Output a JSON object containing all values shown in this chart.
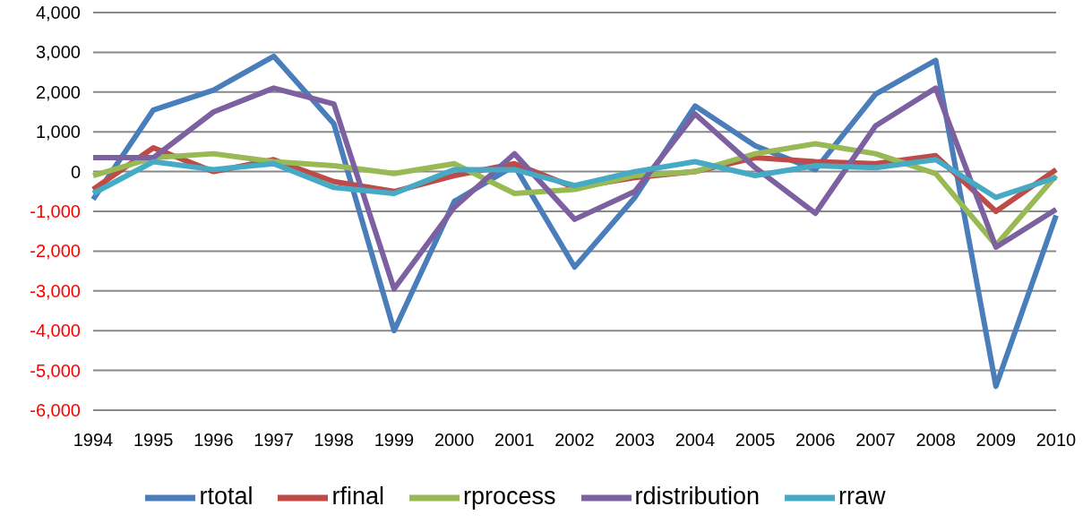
{
  "chart_data": {
    "type": "line",
    "categories": [
      "1994",
      "1995",
      "1996",
      "1997",
      "1998",
      "1999",
      "2000",
      "2001",
      "2002",
      "2003",
      "2004",
      "2005",
      "2006",
      "2007",
      "2008",
      "2009",
      "2010"
    ],
    "series": [
      {
        "name": "rtotal",
        "color": "#4a7ebb",
        "values": [
          -700,
          1550,
          2050,
          2900,
          1200,
          -4000,
          -750,
          150,
          -2400,
          -650,
          1650,
          650,
          50,
          1950,
          2800,
          -5400,
          -1100
        ]
      },
      {
        "name": "rfinal",
        "color": "#be4b48",
        "values": [
          -450,
          600,
          0,
          300,
          -250,
          -500,
          -100,
          200,
          -400,
          -150,
          0,
          350,
          250,
          200,
          400,
          -1000,
          50
        ]
      },
      {
        "name": "rprocess",
        "color": "#98b954",
        "values": [
          -100,
          350,
          450,
          250,
          150,
          -50,
          200,
          -550,
          -450,
          -100,
          0,
          450,
          700,
          450,
          -50,
          -1850,
          -100
        ]
      },
      {
        "name": "rdistribution",
        "color": "#7d60a0",
        "values": [
          350,
          350,
          1500,
          2100,
          1700,
          -2950,
          -900,
          450,
          -1200,
          -500,
          1450,
          100,
          -1050,
          1150,
          2100,
          -1900,
          -950
        ]
      },
      {
        "name": "rraw",
        "color": "#46aac5",
        "values": [
          -550,
          250,
          50,
          200,
          -400,
          -550,
          50,
          50,
          -350,
          0,
          250,
          -100,
          150,
          100,
          300,
          -650,
          -150
        ]
      }
    ],
    "ylim": [
      -6000,
      4000
    ],
    "yticks": [
      {
        "value": -6000,
        "label": "-6,000"
      },
      {
        "value": -5000,
        "label": "-5,000"
      },
      {
        "value": -4000,
        "label": "-4,000"
      },
      {
        "value": -3000,
        "label": "-3,000"
      },
      {
        "value": -2000,
        "label": "-2,000"
      },
      {
        "value": -1000,
        "label": "-1,000"
      },
      0,
      {
        "value": 1000,
        "label": "1,000"
      },
      {
        "value": 2000,
        "label": "2,000"
      },
      {
        "value": 3000,
        "label": "3,000"
      },
      {
        "value": 4000,
        "label": "4,000"
      }
    ],
    "grid": "y",
    "legend": "bottom",
    "marker": "none",
    "line_style": "solid"
  }
}
